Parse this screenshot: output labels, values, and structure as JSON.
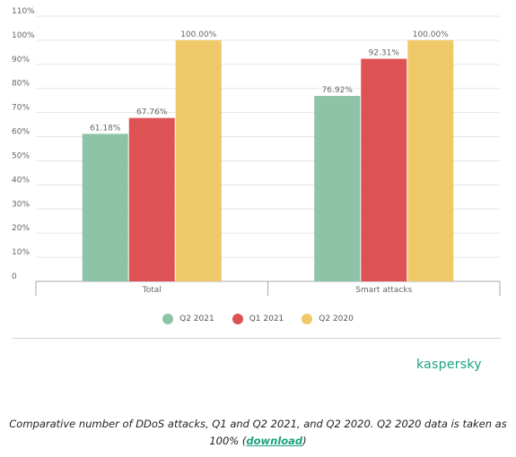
{
  "chart_data": {
    "type": "bar",
    "categories": [
      "Total",
      "Smart attacks"
    ],
    "series": [
      {
        "name": "Q2 2021",
        "color": "#8dc3a7",
        "values": [
          61.18,
          76.92
        ],
        "labels": [
          "61.18%",
          "76.92%"
        ]
      },
      {
        "name": "Q1 2021",
        "color": "#dd5255",
        "values": [
          67.76,
          92.31
        ],
        "labels": [
          "67.76%",
          "92.31%"
        ]
      },
      {
        "name": "Q2 2020",
        "color": "#efc867",
        "values": [
          100.0,
          100.0
        ],
        "labels": [
          "100.00%",
          "100.00%"
        ]
      }
    ],
    "yticks": [
      0,
      10,
      20,
      30,
      40,
      50,
      60,
      70,
      80,
      90,
      100,
      110
    ],
    "ytick_labels": [
      "0",
      "10%",
      "20%",
      "30%",
      "40%",
      "50%",
      "60%",
      "70%",
      "80%",
      "90%",
      "100%",
      "110%"
    ],
    "ylim": [
      0,
      110
    ],
    "grid": true,
    "legend_position": "bottom-center"
  },
  "brand": "kaspersky",
  "caption": {
    "text": "Comparative number of DDoS attacks, Q1 and Q2 2021, and Q2 2020. Q2 2020 data is taken as 100% (",
    "link": "download",
    "end": ")"
  }
}
